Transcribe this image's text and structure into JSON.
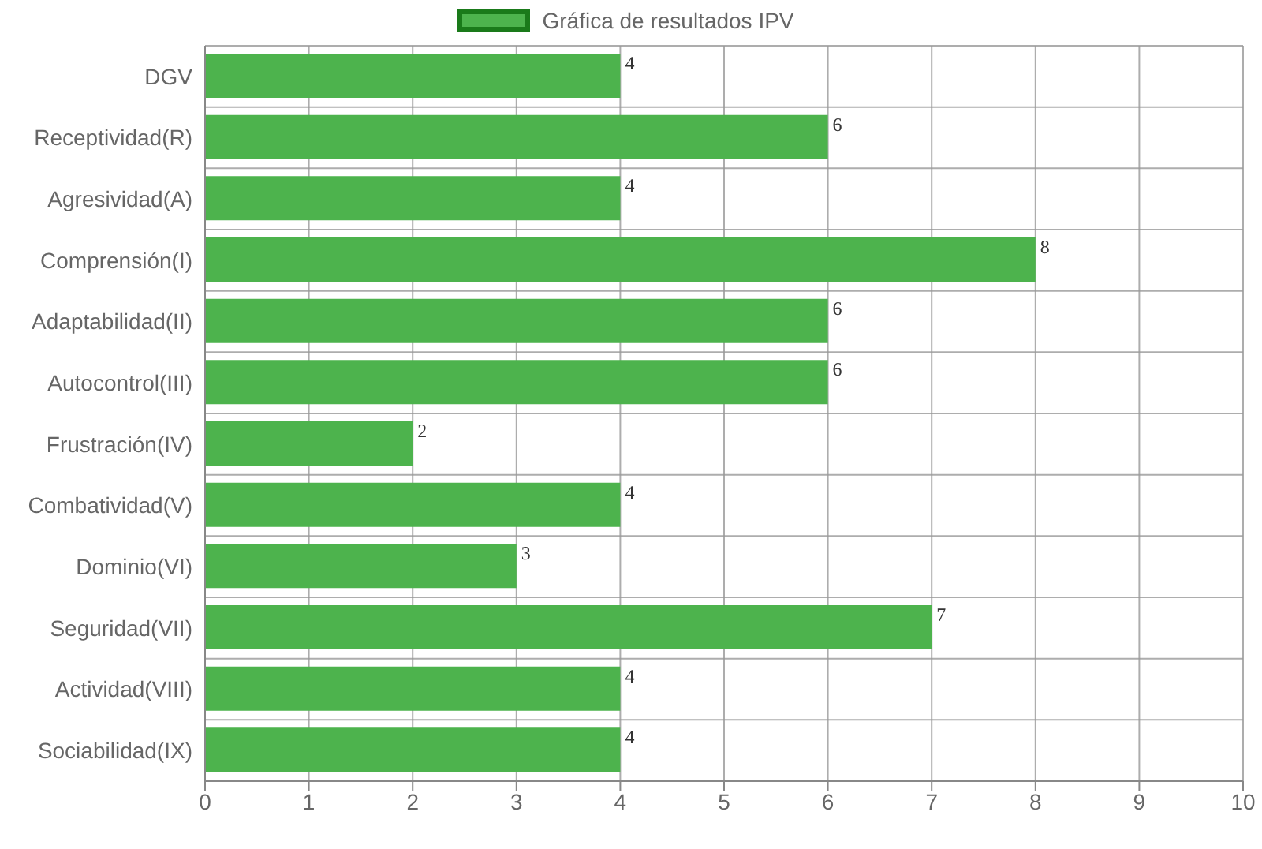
{
  "chart_data": {
    "type": "bar",
    "orientation": "horizontal",
    "categories": [
      "DGV",
      "Receptividad(R)",
      "Agresividad(A)",
      "Comprensión(I)",
      "Adaptabilidad(II)",
      "Autocontrol(III)",
      "Frustración(IV)",
      "Combatividad(V)",
      "Dominio(VI)",
      "Seguridad(VII)",
      "Actividad(VIII)",
      "Sociabilidad(IX)"
    ],
    "series": [
      {
        "name": "Gráfica de resultados IPV",
        "color": "#4db34d",
        "values": [
          4,
          6,
          4,
          8,
          6,
          6,
          2,
          4,
          3,
          7,
          4,
          4
        ]
      }
    ],
    "xlim": [
      0,
      10
    ],
    "xticks": [
      0,
      1,
      2,
      3,
      4,
      5,
      6,
      7,
      8,
      9,
      10
    ],
    "grid": true,
    "legend": "top",
    "data_labels": true
  }
}
